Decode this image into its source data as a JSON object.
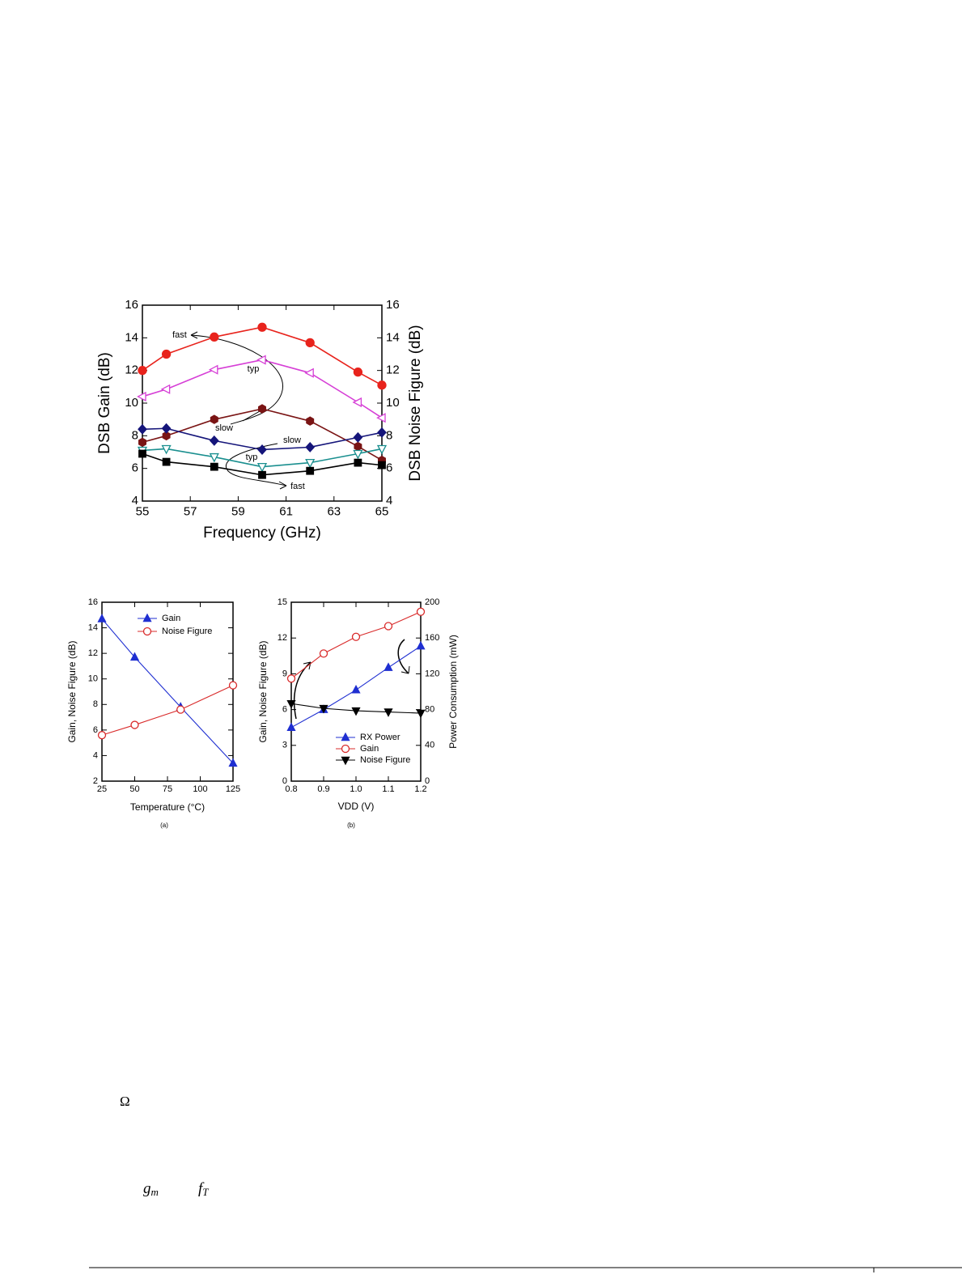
{
  "chart_data": [
    {
      "type": "line",
      "xlabel": "Frequency (GHz)",
      "ylabel": "DSB Gain (dB)",
      "y2label": "DSB Noise Figure (dB)",
      "x": [
        55,
        56,
        58,
        60,
        62,
        64,
        65
      ],
      "xlim": [
        55,
        65
      ],
      "xticks": [
        55,
        57,
        59,
        61,
        63,
        65
      ],
      "ylim": [
        4,
        16
      ],
      "yticks": [
        4,
        6,
        8,
        10,
        12,
        14,
        16
      ],
      "y2lim": [
        4,
        16
      ],
      "y2ticks": [
        4,
        6,
        8,
        10,
        12,
        14,
        16
      ],
      "annotations": [
        "fast",
        "typ",
        "slow",
        "slow",
        "typ",
        "fast"
      ],
      "series": [
        {
          "color": "#e8231c",
          "marker": "circle",
          "filled": true,
          "values": [
            12.0,
            13.0,
            14.05,
            14.65,
            13.7,
            11.9,
            11.1
          ]
        },
        {
          "color": "#d63fd6",
          "marker": "triangle-left",
          "filled": false,
          "values": [
            10.4,
            10.85,
            12.05,
            12.65,
            11.85,
            10.05,
            9.1
          ]
        },
        {
          "color": "#7a1414",
          "marker": "hexagon",
          "filled": true,
          "values": [
            7.6,
            8.0,
            9.0,
            9.65,
            8.9,
            7.35,
            6.5
          ]
        },
        {
          "color": "#15157a",
          "marker": "diamond",
          "filled": true,
          "axis": "y2",
          "values": [
            8.4,
            8.45,
            7.7,
            7.15,
            7.3,
            7.9,
            8.2
          ]
        },
        {
          "color": "#1a8f8f",
          "marker": "triangle-down",
          "filled": false,
          "axis": "y2",
          "values": [
            7.1,
            7.2,
            6.7,
            6.1,
            6.35,
            6.9,
            7.2
          ]
        },
        {
          "color": "#000000",
          "marker": "square",
          "filled": true,
          "axis": "y2",
          "values": [
            6.9,
            6.4,
            6.1,
            5.6,
            5.85,
            6.35,
            6.2
          ]
        }
      ]
    },
    {
      "type": "line",
      "xlabel": "Temperature (°C)",
      "ylabel": "Gain, Noise Figure (dB)",
      "caption": "(a)",
      "x": [
        25,
        50,
        85,
        125
      ],
      "xlim": [
        25,
        125
      ],
      "xticks": [
        25,
        50,
        75,
        100,
        125
      ],
      "ylim": [
        2,
        16
      ],
      "yticks": [
        2,
        4,
        6,
        8,
        10,
        12,
        14,
        16
      ],
      "legend": "upper right",
      "series": [
        {
          "name": "Gain",
          "color": "#1f2fd1",
          "marker": "triangle-up",
          "filled": true,
          "values": [
            14.7,
            11.7,
            7.8,
            3.4
          ]
        },
        {
          "name": "Noise Figure",
          "color": "#d92b2b",
          "marker": "circle",
          "filled": false,
          "values": [
            5.6,
            6.4,
            7.6,
            9.5
          ]
        }
      ]
    },
    {
      "type": "line",
      "xlabel": "VDD (V)",
      "ylabel": "Gain, Noise Figure (dB)",
      "y2label": "Power Consumption (mW)",
      "caption": "(b)",
      "x": [
        0.8,
        0.9,
        1.0,
        1.1,
        1.2
      ],
      "xlim": [
        0.8,
        1.2
      ],
      "xticks": [
        0.8,
        0.9,
        {
          "value": 1,
          "label": "1.0"
        },
        1.1,
        1.2
      ],
      "ylim": [
        0,
        15
      ],
      "yticks": [
        0,
        3,
        6,
        9,
        12,
        15
      ],
      "y2lim": [
        0,
        200
      ],
      "y2ticks": [
        0,
        40,
        80,
        120,
        160,
        200
      ],
      "legend": "lower center",
      "series": [
        {
          "name": "RX Power",
          "color": "#1f2fd1",
          "marker": "triangle-up",
          "filled": true,
          "axis": "y2",
          "values": [
            60,
            80,
            102,
            127,
            151
          ]
        },
        {
          "name": "Gain",
          "color": "#d92b2b",
          "marker": "circle",
          "filled": false,
          "values": [
            8.6,
            10.7,
            12.1,
            13.0,
            14.2
          ]
        },
        {
          "name": "Noise Figure",
          "color": "#000000",
          "marker": "triangle-down",
          "filled": true,
          "values": [
            6.5,
            6.1,
            5.9,
            5.8,
            5.7
          ]
        }
      ]
    }
  ],
  "symbols": [
    {
      "base": "Ω"
    },
    {
      "base": "g",
      "sub": "m"
    },
    {
      "base": "f",
      "sub": "T"
    }
  ]
}
